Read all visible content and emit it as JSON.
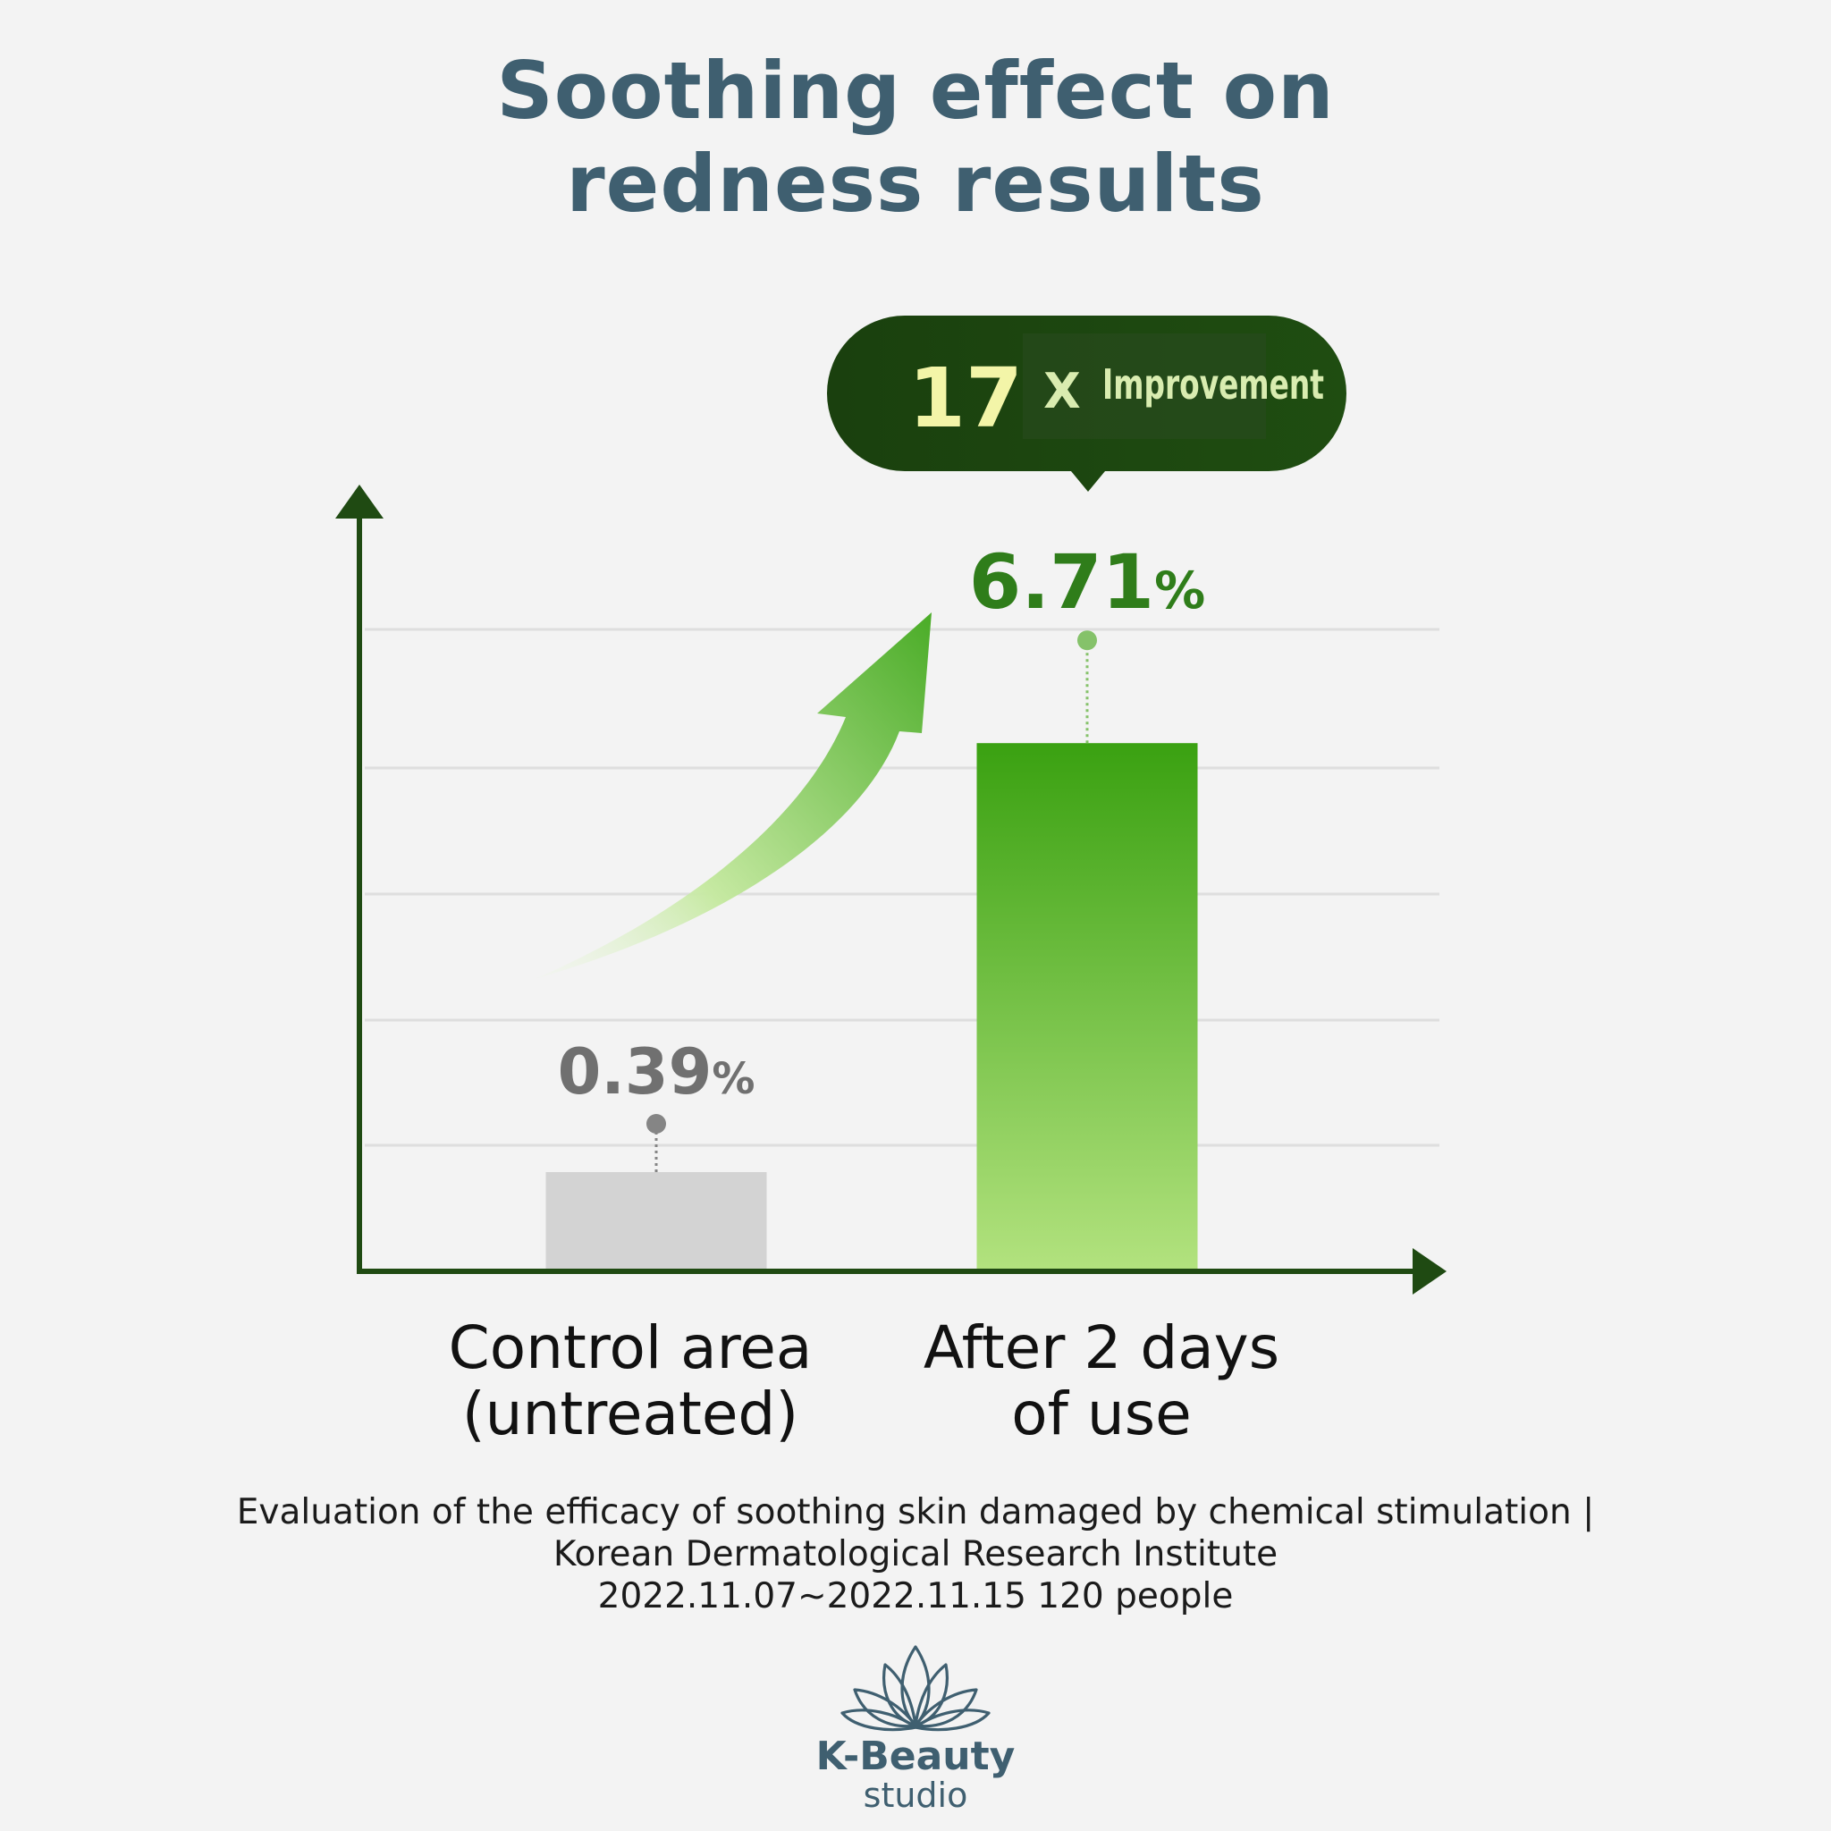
{
  "title_lines": [
    "Soothing effect on",
    "redness results"
  ],
  "callout": {
    "number": "17",
    "multiplier": "X",
    "text": "Improvement"
  },
  "source_lines": [
    "Evaluation of the efficacy of soothing skin damaged by chemical stimulation |",
    "Korean Dermatological Research Institute",
    "2022.11.07~2022.11.15 120 people"
  ],
  "brand": {
    "name": "K-Beauty",
    "sub": "studio",
    "icon": "lotus-icon"
  },
  "colors": {
    "title": "#3f5f70",
    "axis": "#1f4a12",
    "callout_bg": "#1f4a12",
    "callout_number": "#f3f5a8",
    "callout_text": "#d9ecb0",
    "control_bar": "#d3d3d3",
    "control_label": "#707070",
    "treated_top": "#3aa111",
    "treated_bottom": "#b2e27e",
    "treated_label": "#2f7d1a",
    "grid": "#dedede"
  },
  "chart_data": {
    "type": "bar",
    "categories": [
      "Control area\n(untreated)",
      "After 2 days\nof use"
    ],
    "values": [
      0.39,
      6.71
    ],
    "value_labels": [
      "0.39%",
      "6.71%"
    ],
    "unit": "%",
    "title": "Soothing effect on redness results",
    "xlabel": "",
    "ylabel": "",
    "grid": true,
    "legend": "none"
  }
}
